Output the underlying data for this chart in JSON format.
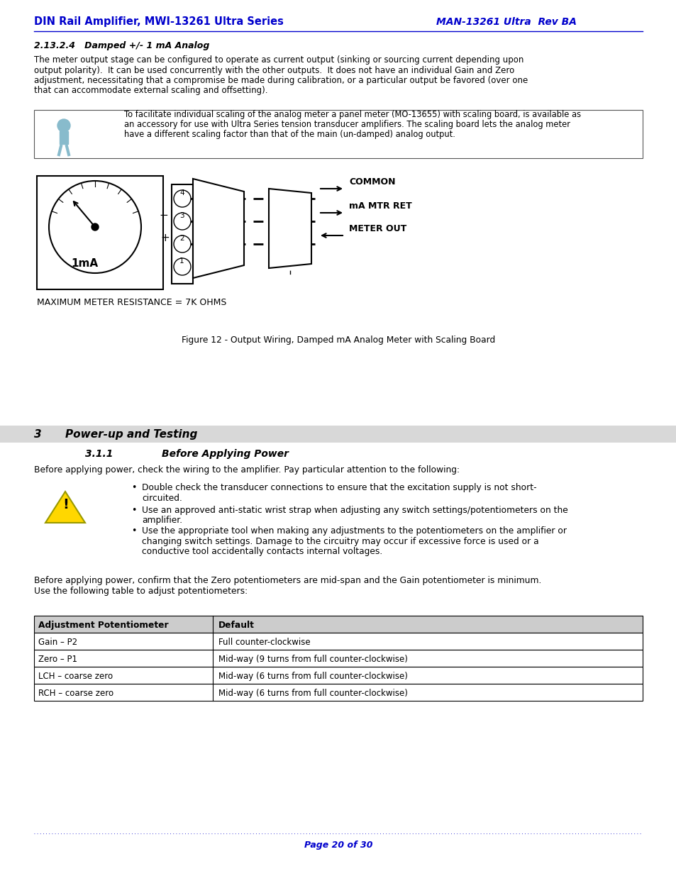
{
  "header_left": "DIN Rail Amplifier, MWI-13261 Ultra Series",
  "header_right": "MAN-13261 Ultra  Rev BA",
  "header_color": "#0000CC",
  "section_title": "2.13.2.4   Damped +/- 1 mA Analog",
  "body_text1_lines": [
    "The meter output stage can be configured to operate as current output (sinking or sourcing current depending upon",
    "output polarity).  It can be used concurrently with the other outputs.  It does not have an individual Gain and Zero",
    "adjustment, necessitating that a compromise be made during calibration, or a particular output be favored (over one",
    "that can accommodate external scaling and offsetting)."
  ],
  "note_lines": [
    "To facilitate individual scaling of the analog meter a panel meter (MO-13655) with scaling board, is available as",
    "an accessory for use with Ultra Series tension transducer amplifiers. The scaling board lets the analog meter",
    "have a different scaling factor than that of the main (un-damped) analog output."
  ],
  "fig_caption": "Figure 12 - Output Wiring, Damped mA Analog Meter with Scaling Board",
  "meter_label": "1mA",
  "meter_resistance": "MAXIMUM METER RESISTANCE = 7K OHMS",
  "section2_num": "3  ",
  "section2_title": "Power-up and Testing",
  "section3_num": "3.1.1",
  "section3_title": "Before Applying Power",
  "body_text2": "Before applying power, check the wiring to the amplifier. Pay particular attention to the following:",
  "bullet1_lines": [
    "Double check the transducer connections to ensure that the excitation supply is not short-",
    "circuited."
  ],
  "bullet2_lines": [
    "Use an approved anti-static wrist strap when adjusting any switch settings/potentiometers on the",
    "amplifier."
  ],
  "bullet3_lines": [
    "Use the appropriate tool when making any adjustments to the potentiometers on the amplifier or",
    "changing switch settings. Damage to the circuitry may occur if excessive force is used or a",
    "conductive tool accidentally contacts internal voltages."
  ],
  "body_text3_lines": [
    "Before applying power, confirm that the Zero potentiometers are mid-span and the Gain potentiometer is minimum.",
    "Use the following table to adjust potentiometers:"
  ],
  "table_headers": [
    "Adjustment Potentiometer",
    "Default"
  ],
  "table_rows": [
    [
      "Gain – P2",
      "Full counter-clockwise"
    ],
    [
      "Zero – P1",
      "Mid-way (9 turns from full counter-clockwise)"
    ],
    [
      "LCH – coarse zero",
      "Mid-way (6 turns from full counter-clockwise)"
    ],
    [
      "RCH – coarse zero",
      "Mid-way (6 turns from full counter-clockwise)"
    ]
  ],
  "page_text": "Page 20 of 30",
  "common_label": "COMMON",
  "mtr_ret_label": "mA MTR RET",
  "meter_out_label": "METER OUT",
  "bg_color": "#ffffff",
  "text_color": "#000000",
  "blue_color": "#0000CC"
}
